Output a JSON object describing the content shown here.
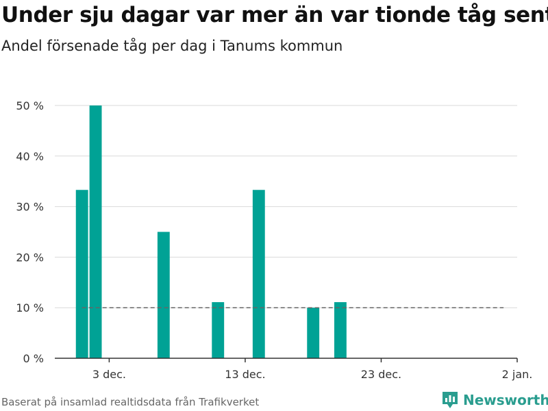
{
  "title": "Under sju dagar var mer än var tionde tåg sent",
  "subtitle": "Andel försenade tåg per dag i Tanums kommun",
  "footer": "Baserat på insamlad realtidsdata från Trafikverket",
  "brand": {
    "name": "Newsworthy",
    "icon": "newsworthy-logo-icon"
  },
  "colors": {
    "bar": "#00a295",
    "reference_line": "#666666",
    "grid": "#d9d9d9",
    "axis": "#333333",
    "brand": "#2a9d8f"
  },
  "chart_data": {
    "type": "bar",
    "x_unit": "date",
    "x": [
      "2023-12-01",
      "2023-12-02",
      "2023-12-07",
      "2023-12-11",
      "2023-12-14",
      "2023-12-18",
      "2023-12-20"
    ],
    "values": [
      33.3,
      50,
      25,
      11.1,
      33.3,
      10,
      11.1
    ],
    "ylim": [
      0,
      50
    ],
    "xlim": [
      "2023-11-29",
      "2024-01-02"
    ],
    "y_ticks": [
      0,
      10,
      20,
      30,
      40,
      50
    ],
    "y_tick_labels": [
      "0 %",
      "10 %",
      "20 %",
      "30 %",
      "40 %",
      "50 %"
    ],
    "x_ticks": [
      "2023-12-03",
      "2023-12-13",
      "2023-12-23",
      "2024-01-02"
    ],
    "x_tick_labels": [
      "3 dec.",
      "13 dec.",
      "23 dec.",
      "2 jan."
    ],
    "reference_line": {
      "y": 10,
      "style": "dashed",
      "from": "2023-12-01",
      "to": "2024-01-01"
    },
    "grid": true,
    "legend": "none"
  }
}
